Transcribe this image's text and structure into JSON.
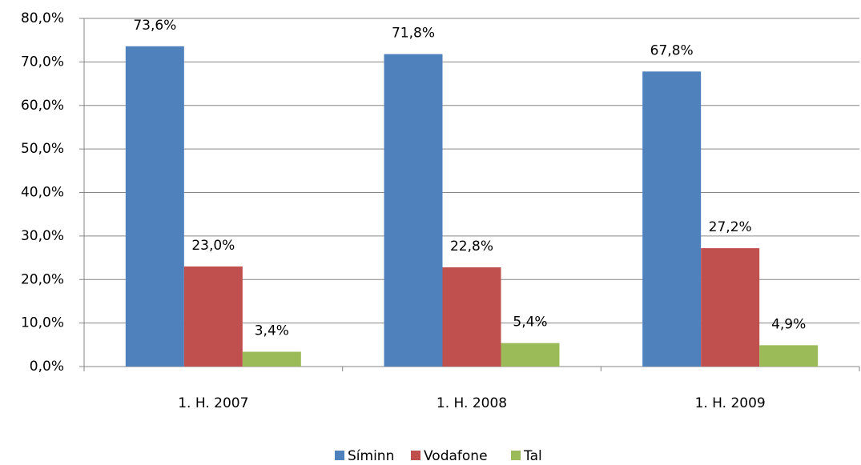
{
  "chart_data": {
    "type": "bar",
    "categories": [
      "1. H. 2007",
      "1. H. 2008",
      "1. H. 2009"
    ],
    "series": [
      {
        "name": "Síminn",
        "color": "#4f81bd",
        "values": [
          73.6,
          71.8,
          67.8
        ],
        "value_labels": [
          "73,6%",
          "71,8%",
          "67,8%"
        ]
      },
      {
        "name": "Vodafone",
        "color": "#c0504d",
        "values": [
          23.0,
          22.8,
          27.2
        ],
        "value_labels": [
          "23,0%",
          "22,8%",
          "27,2%"
        ]
      },
      {
        "name": "Tal",
        "color": "#9bbb59",
        "values": [
          3.4,
          5.4,
          4.9
        ],
        "value_labels": [
          "3,4%",
          "5,4%",
          "4,9%"
        ]
      }
    ],
    "ylim": [
      0,
      80
    ],
    "yticks": [
      {
        "value": 0,
        "label": "0,0%"
      },
      {
        "value": 10,
        "label": "10,0%"
      },
      {
        "value": 20,
        "label": "20,0%"
      },
      {
        "value": 30,
        "label": "30,0%"
      },
      {
        "value": 40,
        "label": "40,0%"
      },
      {
        "value": 50,
        "label": "50,0%"
      },
      {
        "value": 60,
        "label": "60,0%"
      },
      {
        "value": 70,
        "label": "70,0%"
      },
      {
        "value": 80,
        "label": "80,0%"
      }
    ],
    "grid": true,
    "legend": "bottom"
  }
}
